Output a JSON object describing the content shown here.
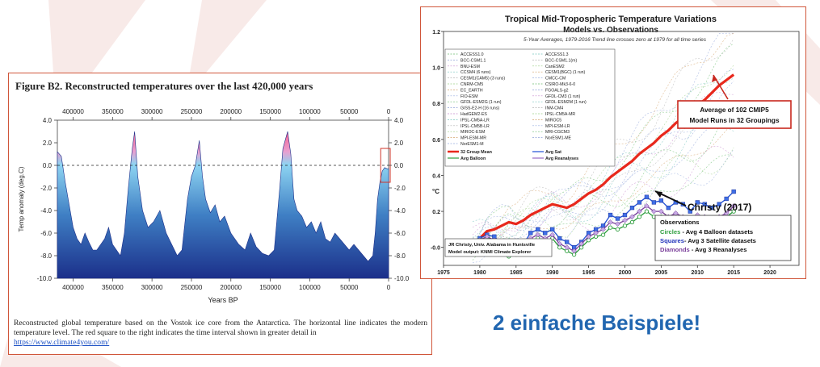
{
  "left_chart": {
    "title": "Figure B2. Reconstructed temperatures over the last 420,000 years",
    "caption": "Reconstructed global temperature based on the Vostok ice core from the Antarctica. The horizontal line indicates the modern temperature level. The red square to the right indicates the time interval shown in greater detail in",
    "link": "https://www.climate4you.com/"
  },
  "right_chart": {
    "title": "Tropical Mid-Tropospheric Temperature Variations",
    "subtitle": "Models vs. Observations",
    "note": "5-Year Averages, 1979-2016 Trend line crosses zero at 1979 for all time series",
    "callout_models": [
      "Average of 102 CMIP5",
      "Model Runs in 32 Groupings"
    ],
    "callout_christy": "Christy (2017)",
    "obs_box": {
      "title": "Observations",
      "lines": [
        {
          "word": "Circles",
          "rest": " - Avg 4 Balloon datasets",
          "color": "#2e9e3e"
        },
        {
          "word": "Squares",
          "rest": "- Avg 3 Satellite datasets",
          "color": "#2233bb"
        },
        {
          "word": "Diamonds",
          "rest": " - Avg 3 Reanalyses",
          "color": "#7a3f9a"
        }
      ]
    },
    "credit": [
      "JR Christy, Univ. Alabama in Huntsville",
      "Model output: KNMI Climate Explorer"
    ],
    "legend_models_left": [
      "ACCESS1.0",
      "BCC-CSM1.1",
      "BNU-ESM",
      "CCSM4 (6 runs)",
      "CESM1(CAM5) (3 runs)",
      "CNRM-CM5",
      "EC_EARTH",
      "FIO-ESM",
      "GFDL-ESM2G (1 run)",
      "GISS-E2-H (16 runs)",
      "HadGEM2-ES",
      "IPSL-CM5A-LR",
      "IPSL-CM5B-LR",
      "MIROC-ESM",
      "MPI-ESM-MR",
      "NorESM1-M"
    ],
    "legend_models_right": [
      "ACCESS1.3",
      "BCC-CSM1.1(m)",
      "CanESM2",
      "CESM1(BGC) (1 run)",
      "CMCC-CM",
      "CSIRO-Mk3-6-0",
      "FGOALS-g2",
      "GFDL-CM3 (1 run)",
      "GFDL-ESM2M (1 run)",
      "INM-CM4",
      "IPSL-CM5A-MR",
      "MIROC5",
      "MPI-ESM-LR",
      "MRI-CGCM3",
      "NorESM1-ME"
    ],
    "legend_special": [
      {
        "label": "32 Group Mean",
        "color": "#e8281c"
      },
      {
        "label": "Avg Sat",
        "color": "#1f4fd6"
      },
      {
        "label": "Avg Balloon",
        "color": "#2e9e3e"
      },
      {
        "label": "Avg Reanalyses",
        "color": "#9a6cc4"
      }
    ]
  },
  "slogan": "2 einfache Beispiele!",
  "chart_data": [
    {
      "type": "area",
      "title": "Figure B2. Reconstructed temperatures over the last 420,000 years",
      "xlabel": "Years BP",
      "ylabel": "Temp anomaly (deg.C)",
      "x_ticks": [
        "400000",
        "350000",
        "300000",
        "250000",
        "200000",
        "150000",
        "100000",
        "50000",
        "0"
      ],
      "y_ticks": [
        "4.0",
        "2.0",
        "0.0",
        "-2.0",
        "-4.0",
        "-6.0",
        "-8.0",
        "-10.0"
      ],
      "y_ticks_right": [
        "4.0",
        "2.0",
        "0.0",
        "-2.0",
        "-4.0",
        "-6.0",
        "-8.0",
        "-10.0"
      ],
      "xlim": [
        420000,
        0
      ],
      "ylim": [
        -10,
        4
      ],
      "reference_line": 0,
      "x": [
        420000,
        415000,
        410000,
        405000,
        400000,
        395000,
        390000,
        385000,
        380000,
        375000,
        370000,
        365000,
        360000,
        355000,
        350000,
        345000,
        340000,
        335000,
        330000,
        325000,
        322000,
        318000,
        312000,
        305000,
        298000,
        290000,
        282000,
        275000,
        268000,
        262000,
        255000,
        250000,
        245000,
        240000,
        236000,
        232000,
        226000,
        220000,
        214000,
        208000,
        200000,
        195000,
        190000,
        182000,
        175000,
        168000,
        160000,
        152000,
        145000,
        138000,
        134000,
        128000,
        124000,
        120000,
        116000,
        110000,
        104000,
        98000,
        92000,
        86000,
        80000,
        74000,
        68000,
        62000,
        56000,
        50000,
        44000,
        38000,
        32000,
        26000,
        20000,
        17000,
        14000,
        11000,
        8000,
        5000,
        2000,
        0
      ],
      "y": [
        1.2,
        0.8,
        -1.5,
        -3.5,
        -5.5,
        -6.5,
        -7,
        -6,
        -6.8,
        -7.5,
        -7.5,
        -7,
        -6.5,
        -5.5,
        -7,
        -7.5,
        -8,
        -6,
        -2,
        1.5,
        3.0,
        -1,
        -4,
        -5.5,
        -5,
        -4,
        -6,
        -7,
        -8,
        -7.5,
        -3,
        -1,
        0,
        2.2,
        -1,
        -3,
        -4.2,
        -3.5,
        -5,
        -4.5,
        -6,
        -6.5,
        -7,
        -7.5,
        -6,
        -7.2,
        -7.8,
        -8,
        -7.5,
        -2,
        1.5,
        3.0,
        1,
        -3,
        -4,
        -4.5,
        -5.5,
        -5,
        -6,
        -5,
        -6.5,
        -6.8,
        -6,
        -6.5,
        -7,
        -7.5,
        -7,
        -7.5,
        -8,
        -8.5,
        -8,
        -6,
        -3,
        -1.5,
        -0.5,
        -0.2,
        -0.3,
        -0.3
      ]
    },
    {
      "type": "line",
      "title": "Tropical Mid-Tropospheric Temperature Variations",
      "subtitle": "Models vs. Observations",
      "ylabel": "°C",
      "xlim": [
        1975,
        2024
      ],
      "ylim": [
        -0.1,
        1.2
      ],
      "x_ticks": [
        "1975",
        "1980",
        "1985",
        "1990",
        "1995",
        "2000",
        "2005",
        "2010",
        "2015",
        "2020"
      ],
      "y_ticks": [
        "-0.0",
        "0.2",
        "0.4",
        "0.6",
        "0.8",
        "1.0",
        "1.2"
      ],
      "x": [
        1979,
        1980,
        1981,
        1982,
        1983,
        1984,
        1985,
        1986,
        1987,
        1988,
        1989,
        1990,
        1991,
        1992,
        1993,
        1994,
        1995,
        1996,
        1997,
        1998,
        1999,
        2000,
        2001,
        2002,
        2003,
        2004,
        2005,
        2006,
        2007,
        2008,
        2009,
        2010,
        2011,
        2012,
        2013,
        2014,
        2015
      ],
      "series": [
        {
          "name": "32 Group Mean",
          "values": [
            0.02,
            0.05,
            0.09,
            0.1,
            0.12,
            0.14,
            0.13,
            0.15,
            0.18,
            0.2,
            0.22,
            0.24,
            0.23,
            0.22,
            0.24,
            0.27,
            0.3,
            0.32,
            0.35,
            0.39,
            0.42,
            0.45,
            0.48,
            0.52,
            0.55,
            0.58,
            0.62,
            0.65,
            0.69,
            0.72,
            0.75,
            0.79,
            0.82,
            0.86,
            0.9,
            0.93,
            0.96
          ]
        },
        {
          "name": "Avg Sat",
          "values": [
            0.03,
            0.05,
            0.07,
            0.06,
            0.02,
            -0.03,
            0.0,
            0.02,
            0.08,
            0.1,
            0.08,
            0.1,
            0.05,
            0.03,
            0.0,
            0.03,
            0.08,
            0.1,
            0.12,
            0.18,
            0.16,
            0.18,
            0.22,
            0.25,
            0.28,
            0.25,
            0.26,
            0.22,
            0.25,
            0.24,
            0.2,
            0.25,
            0.24,
            0.22,
            0.24,
            0.27,
            0.31
          ]
        },
        {
          "name": "Avg Balloon",
          "values": [
            0.02,
            0.04,
            0.06,
            0.03,
            -0.02,
            -0.05,
            -0.04,
            -0.02,
            0.03,
            0.05,
            0.03,
            0.05,
            0.0,
            -0.02,
            -0.04,
            0.0,
            0.04,
            0.06,
            0.07,
            0.11,
            0.1,
            0.12,
            0.14,
            0.17,
            0.2,
            0.17,
            0.17,
            0.14,
            0.16,
            0.14,
            0.11,
            0.16,
            0.15,
            0.13,
            0.15,
            0.17,
            0.2
          ]
        },
        {
          "name": "Avg Reanalyses",
          "values": [
            0.02,
            0.04,
            0.06,
            0.04,
            0.0,
            -0.04,
            -0.02,
            0.0,
            0.05,
            0.07,
            0.05,
            0.07,
            0.02,
            0.0,
            -0.02,
            0.02,
            0.06,
            0.08,
            0.1,
            0.14,
            0.13,
            0.15,
            0.17,
            0.2,
            0.23,
            0.2,
            0.2,
            0.17,
            0.19,
            0.17,
            0.14,
            0.18,
            0.17,
            0.15,
            0.17,
            0.19,
            0.23
          ]
        }
      ]
    }
  ]
}
